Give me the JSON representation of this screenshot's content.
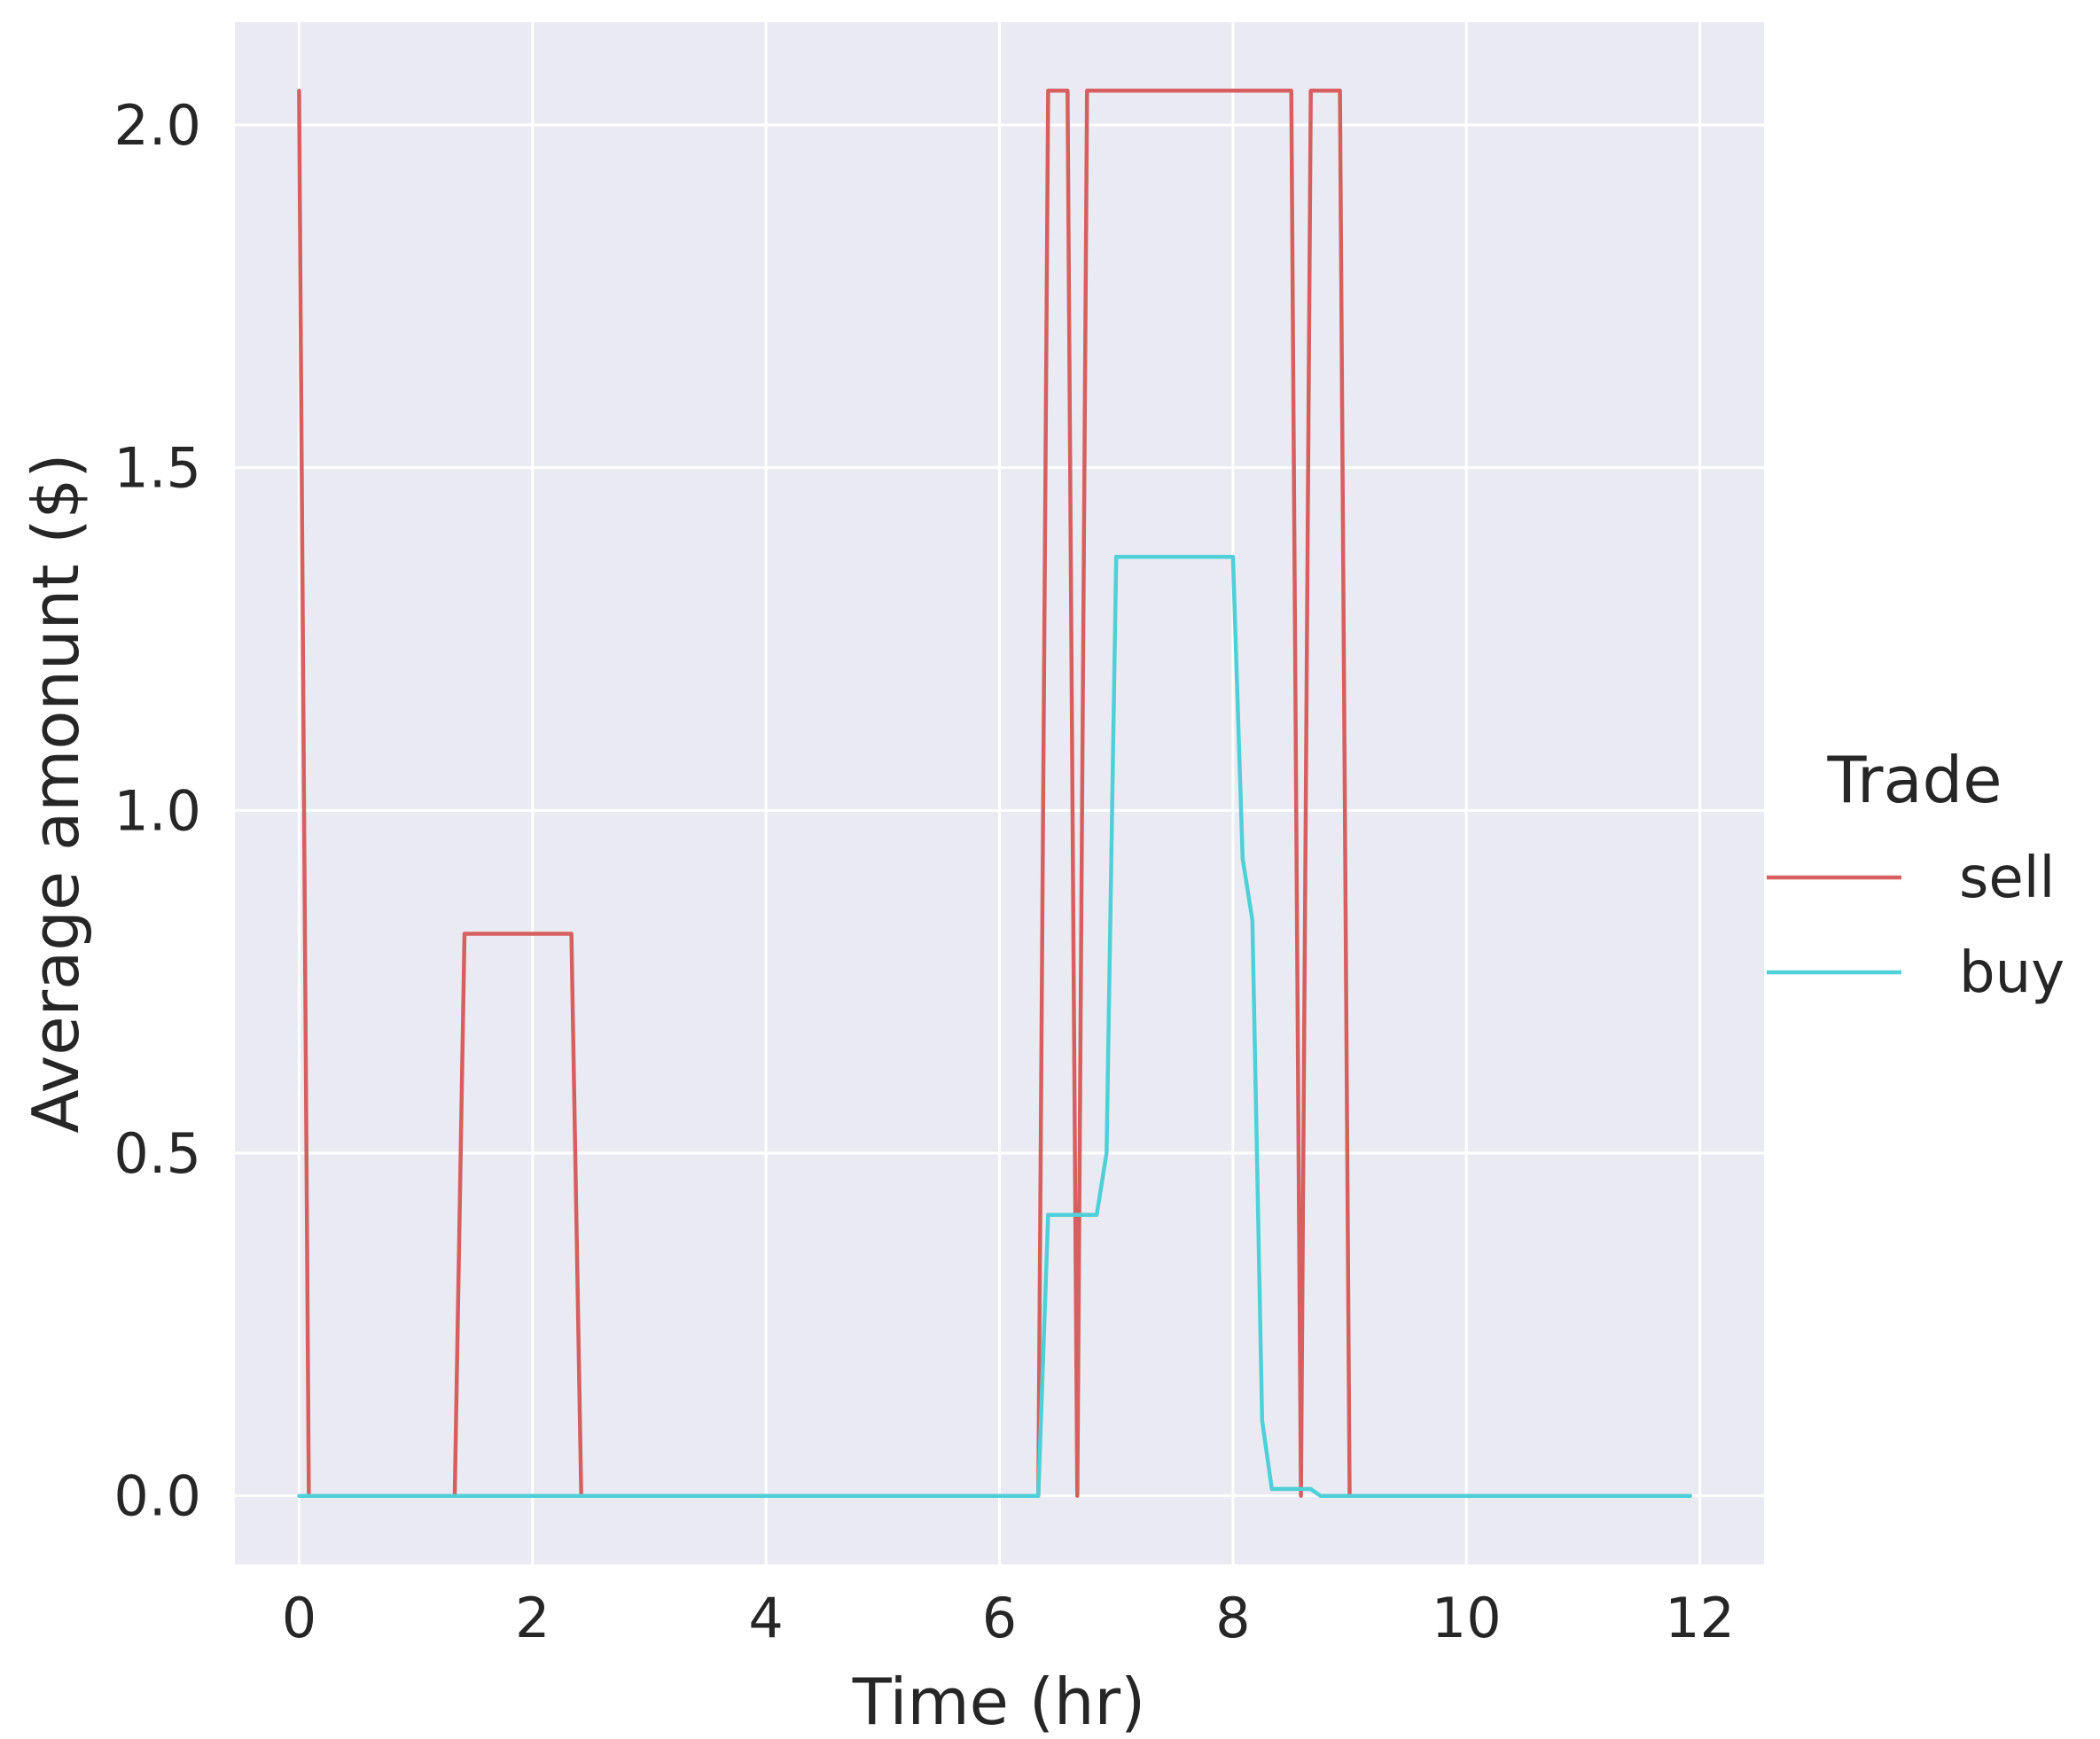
{
  "chart_data": {
    "type": "line",
    "xlabel": "Time (hr)",
    "ylabel": "Average amonunt ($)",
    "xlim": [
      -0.55,
      12.55
    ],
    "ylim": [
      -0.1,
      2.15
    ],
    "xticks": [
      0,
      2,
      4,
      6,
      8,
      10,
      12
    ],
    "xtick_labels": [
      "0",
      "2",
      "4",
      "6",
      "8",
      "10",
      "12"
    ],
    "yticks": [
      0.0,
      0.5,
      1.0,
      1.5,
      2.0
    ],
    "ytick_labels": [
      "0.0",
      "0.5",
      "1.0",
      "1.5",
      "2.0"
    ],
    "grid": true,
    "legend": {
      "title": "Trade",
      "placement": "right-outside"
    },
    "colors": {
      "plot_background": "#eaeaf2",
      "grid": "#ffffff",
      "text": "#262626"
    },
    "series": [
      {
        "name": "sell",
        "color": "#d65f5f",
        "points": [
          [
            0,
            2.05
          ],
          [
            0.083,
            0
          ],
          [
            1.333,
            0
          ],
          [
            1.417,
            0.82
          ],
          [
            2.333,
            0.82
          ],
          [
            2.417,
            0
          ],
          [
            6.333,
            0
          ],
          [
            6.417,
            2.05
          ],
          [
            6.583,
            2.05
          ],
          [
            6.667,
            0
          ],
          [
            6.75,
            2.05
          ],
          [
            8.5,
            2.05
          ],
          [
            8.583,
            0
          ],
          [
            8.667,
            2.05
          ],
          [
            8.917,
            2.05
          ],
          [
            9.0,
            0
          ],
          [
            11.917,
            0
          ]
        ]
      },
      {
        "name": "buy",
        "color": "#4fd0d8",
        "points": [
          [
            0,
            0
          ],
          [
            6.333,
            0
          ],
          [
            6.417,
            0.41
          ],
          [
            6.833,
            0.41
          ],
          [
            6.917,
            0.5
          ],
          [
            7.0,
            1.37
          ],
          [
            8.0,
            1.37
          ],
          [
            8.083,
            0.93
          ],
          [
            8.167,
            0.84
          ],
          [
            8.25,
            0.11
          ],
          [
            8.333,
            0.01
          ],
          [
            8.667,
            0.01
          ],
          [
            8.75,
            0
          ],
          [
            11.917,
            0
          ]
        ]
      }
    ]
  }
}
